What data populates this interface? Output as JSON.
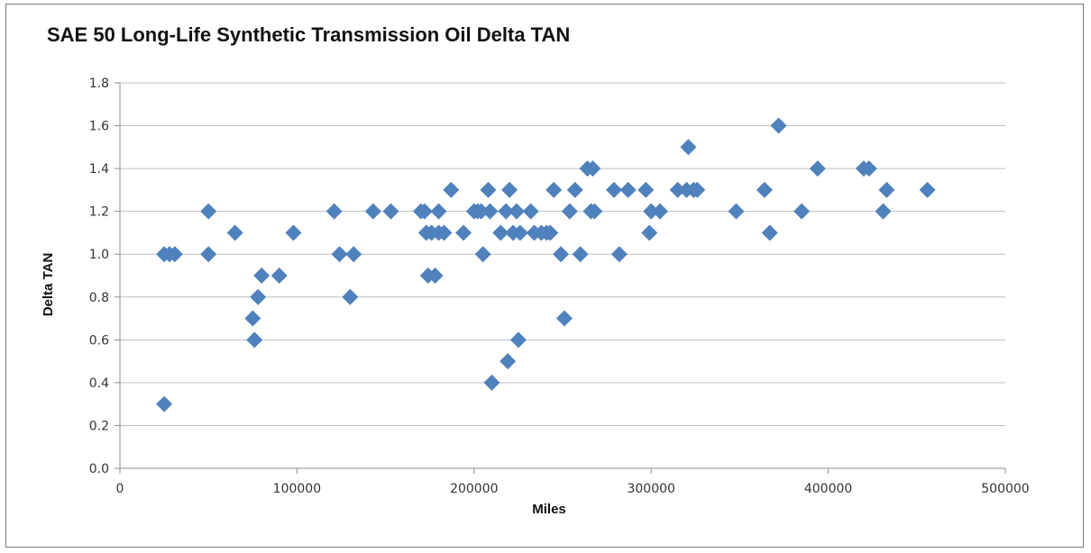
{
  "chart_data": {
    "type": "scatter",
    "title": "SAE 50 Long-Life Synthetic Transmission Oil Delta TAN",
    "xlabel": "Miles",
    "ylabel": "Delta TAN",
    "xlim": [
      0,
      500000
    ],
    "ylim": [
      0,
      1.8
    ],
    "xticks": [
      "0",
      "100000",
      "200000",
      "300000",
      "400000",
      "500000"
    ],
    "yticks": [
      "0.0",
      "0.2",
      "0.4",
      "0.6",
      "0.8",
      "1.0",
      "1.2",
      "1.4",
      "1.6",
      "1.8"
    ],
    "grid": "horizontal",
    "marker_color": "#4f81bd",
    "marker": "diamond",
    "series": [
      {
        "points": [
          [
            25000,
            0.3
          ],
          [
            25000,
            1.0
          ],
          [
            28000,
            1.0
          ],
          [
            31000,
            1.0
          ],
          [
            50000,
            1.2
          ],
          [
            50000,
            1.0
          ],
          [
            65000,
            1.1
          ],
          [
            75000,
            0.7
          ],
          [
            76000,
            0.6
          ],
          [
            78000,
            0.8
          ],
          [
            80000,
            0.9
          ],
          [
            90000,
            0.9
          ],
          [
            98000,
            1.1
          ],
          [
            121000,
            1.2
          ],
          [
            124000,
            1.0
          ],
          [
            130000,
            0.8
          ],
          [
            132000,
            1.0
          ],
          [
            143000,
            1.2
          ],
          [
            153000,
            1.2
          ],
          [
            170000,
            1.2
          ],
          [
            172000,
            1.2
          ],
          [
            173000,
            1.1
          ],
          [
            174000,
            0.9
          ],
          [
            176000,
            1.1
          ],
          [
            178000,
            0.9
          ],
          [
            180000,
            1.2
          ],
          [
            180000,
            1.1
          ],
          [
            183000,
            1.1
          ],
          [
            187000,
            1.3
          ],
          [
            194000,
            1.1
          ],
          [
            200000,
            1.2
          ],
          [
            202000,
            1.2
          ],
          [
            204000,
            1.2
          ],
          [
            205000,
            1.0
          ],
          [
            208000,
            1.3
          ],
          [
            209000,
            1.2
          ],
          [
            210000,
            0.4
          ],
          [
            215000,
            1.1
          ],
          [
            218000,
            1.2
          ],
          [
            219000,
            0.5
          ],
          [
            220000,
            1.3
          ],
          [
            222000,
            1.1
          ],
          [
            224000,
            1.2
          ],
          [
            225000,
            0.6
          ],
          [
            226000,
            1.1
          ],
          [
            232000,
            1.2
          ],
          [
            234000,
            1.1
          ],
          [
            238000,
            1.1
          ],
          [
            241000,
            1.1
          ],
          [
            243000,
            1.1
          ],
          [
            245000,
            1.3
          ],
          [
            249000,
            1.0
          ],
          [
            251000,
            0.7
          ],
          [
            254000,
            1.2
          ],
          [
            257000,
            1.3
          ],
          [
            260000,
            1.0
          ],
          [
            264000,
            1.4
          ],
          [
            266000,
            1.2
          ],
          [
            267000,
            1.4
          ],
          [
            268000,
            1.2
          ],
          [
            279000,
            1.3
          ],
          [
            282000,
            1.0
          ],
          [
            287000,
            1.3
          ],
          [
            297000,
            1.3
          ],
          [
            299000,
            1.1
          ],
          [
            300000,
            1.2
          ],
          [
            305000,
            1.2
          ],
          [
            315000,
            1.3
          ],
          [
            320000,
            1.3
          ],
          [
            321000,
            1.5
          ],
          [
            324000,
            1.3
          ],
          [
            326000,
            1.3
          ],
          [
            348000,
            1.2
          ],
          [
            364000,
            1.3
          ],
          [
            367000,
            1.1
          ],
          [
            372000,
            1.6
          ],
          [
            385000,
            1.2
          ],
          [
            394000,
            1.4
          ],
          [
            420000,
            1.4
          ],
          [
            423000,
            1.4
          ],
          [
            431000,
            1.2
          ],
          [
            433000,
            1.3
          ],
          [
            456000,
            1.3
          ]
        ]
      }
    ]
  }
}
